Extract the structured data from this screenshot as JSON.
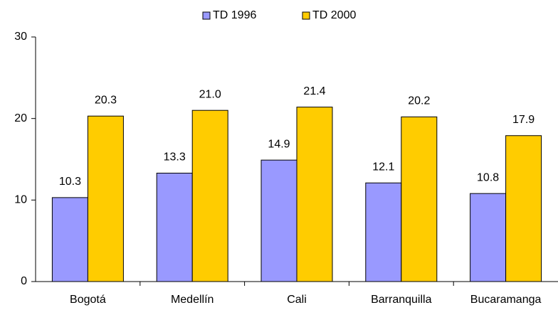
{
  "chart_data": {
    "type": "bar",
    "categories": [
      "Bogotá",
      "Medellín",
      "Cali",
      "Barranquilla",
      "Bucaramanga"
    ],
    "series": [
      {
        "name": "TD 1996",
        "color": "#9999ff",
        "values": [
          10.3,
          13.3,
          14.9,
          12.1,
          10.8
        ],
        "value_labels": [
          "10.3",
          "13.3",
          "14.9",
          "12.1",
          "10.8"
        ]
      },
      {
        "name": "TD 2000",
        "color": "#ffcc00",
        "values": [
          20.3,
          21.0,
          21.4,
          20.2,
          17.9
        ],
        "value_labels": [
          "20.3",
          "21.0",
          "21.4",
          "20.2",
          "17.9"
        ]
      }
    ],
    "ylim": [
      0,
      30
    ],
    "yticks": [
      0,
      10,
      20,
      30
    ],
    "grid": false,
    "legend": "top"
  }
}
